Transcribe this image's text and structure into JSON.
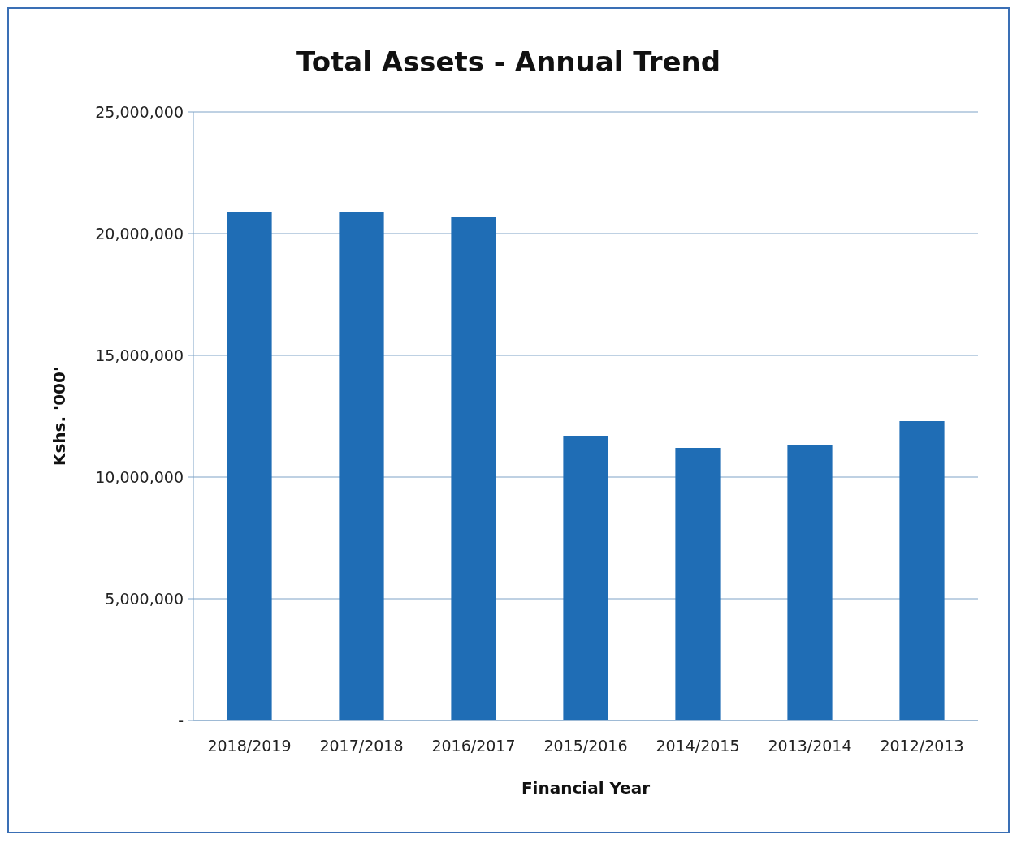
{
  "chart_data": {
    "type": "bar",
    "title": "Total Assets - Annual Trend",
    "xlabel": "Financial Year",
    "ylabel": "Kshs. '000'",
    "categories": [
      "2018/2019",
      "2017/2018",
      "2016/2017",
      "2015/2016",
      "2014/2015",
      "2013/2014",
      "2012/2013"
    ],
    "values": [
      20900000,
      20900000,
      20700000,
      11700000,
      11200000,
      11300000,
      12300000
    ],
    "color": "#1f6db5",
    "ylim": [
      0,
      25000000
    ],
    "yticks": [
      {
        "value": 0,
        "label": "-"
      },
      {
        "value": 5000000,
        "label": "5,000,000"
      },
      {
        "value": 10000000,
        "label": "10,000,000"
      },
      {
        "value": 15000000,
        "label": "15,000,000"
      },
      {
        "value": 20000000,
        "label": "20,000,000"
      },
      {
        "value": 25000000,
        "label": "25,000,000"
      }
    ],
    "grid": "y"
  }
}
